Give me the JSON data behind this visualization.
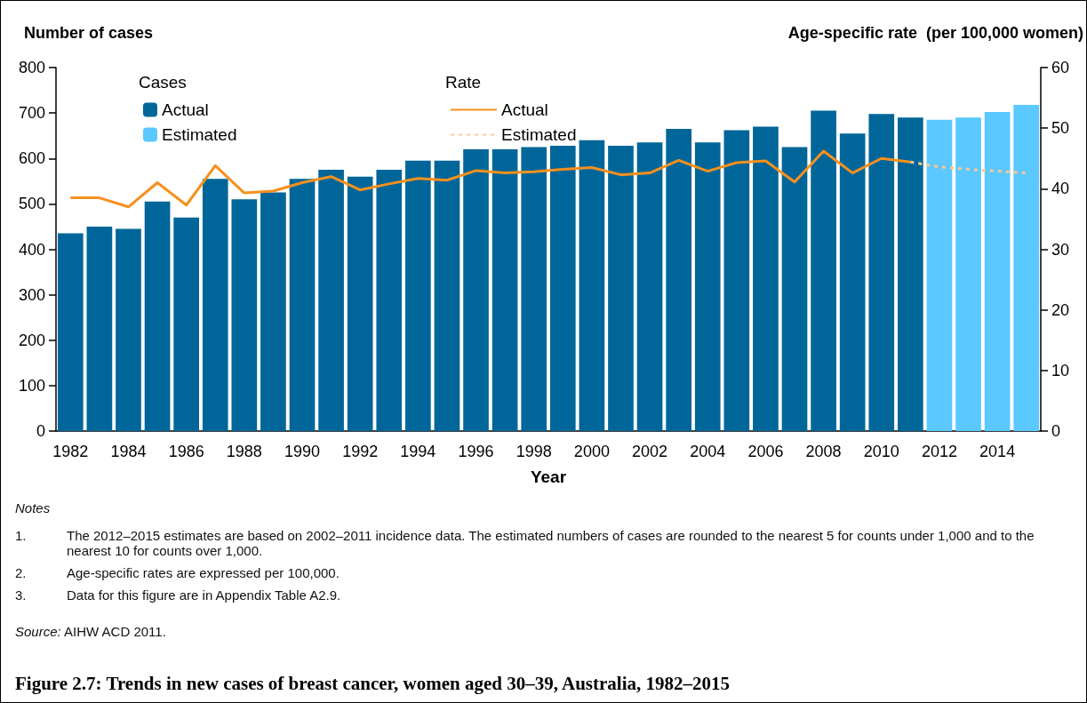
{
  "chart_data": {
    "type": "bar",
    "title": "Figure 2.7: Trends in new cases of breast cancer, women aged 30–39, Australia, 1982–2015",
    "xlabel": "Year",
    "ylabel": "Number of cases",
    "y2label": "Age-specific rate  (per 100,000 women)",
    "legend_title": [
      "Cases",
      "Rate"
    ],
    "categories": [
      "1982",
      null,
      "1984",
      null,
      "1986",
      null,
      "1988",
      null,
      "1990",
      null,
      "1992",
      null,
      "1994",
      null,
      "1996",
      null,
      "1998",
      null,
      "2000",
      null,
      "2002",
      null,
      "2004",
      null,
      "2006",
      null,
      "2008",
      null,
      "2010",
      null,
      "2012",
      null,
      "2014",
      null
    ],
    "stacked": true,
    "series": [
      {
        "name": "Actual",
        "type": "bar",
        "color": "#006699",
        "values": [
          435,
          450,
          445,
          505,
          470,
          555,
          510,
          525,
          555,
          575,
          560,
          575,
          595,
          595,
          620,
          620,
          625,
          628,
          640,
          628,
          635,
          665,
          635,
          662,
          670,
          625,
          705,
          655,
          698,
          690,
          null,
          null,
          null,
          null
        ]
      },
      {
        "name": "Estimated",
        "type": "bar",
        "color": "#5bc8ff",
        "values": [
          null,
          null,
          null,
          null,
          null,
          null,
          null,
          null,
          null,
          null,
          null,
          null,
          null,
          null,
          null,
          null,
          null,
          null,
          null,
          null,
          null,
          null,
          null,
          null,
          null,
          null,
          null,
          null,
          null,
          null,
          685,
          690,
          702,
          718
        ]
      },
      {
        "name": "Actual",
        "type": "line",
        "axis": "y2",
        "color": "#f7901e",
        "line_style": "solid",
        "values": [
          38.5,
          38.5,
          37,
          41,
          37.3,
          43.8,
          39.3,
          39.6,
          41,
          42,
          39.8,
          40.8,
          41.7,
          41.4,
          43,
          42.6,
          42.8,
          43.2,
          43.5,
          42.3,
          42.6,
          44.7,
          42.9,
          44.3,
          44.6,
          41.1,
          46.2,
          42.6,
          45,
          44.4,
          null,
          null,
          null,
          null
        ]
      },
      {
        "name": "Estimated",
        "type": "line",
        "axis": "y2",
        "color": "#fcc894",
        "line_style": "dotted",
        "values": [
          null,
          null,
          null,
          null,
          null,
          null,
          null,
          null,
          null,
          null,
          null,
          null,
          null,
          null,
          null,
          null,
          null,
          null,
          null,
          null,
          null,
          null,
          null,
          null,
          null,
          null,
          null,
          null,
          null,
          44.4,
          43.6,
          43.2,
          42.9,
          42.6
        ]
      }
    ],
    "ylim": [
      0,
      800
    ],
    "yticks": [
      0,
      100,
      200,
      300,
      400,
      500,
      600,
      700,
      800
    ],
    "y2lim": [
      0,
      60
    ],
    "y2ticks": [
      0,
      10,
      20,
      30,
      40,
      50,
      60
    ],
    "grid": false,
    "legend": "top left",
    "marker": "none",
    "annotations": [
      "Notes",
      "1. The 2012–2015 estimates are based on 2002–2011 incidence data. The estimated numbers of cases are rounded to the nearest 5 for counts under 1,000 and to the nearest 10 for counts over 1,000.",
      "2. Age-specific rates are expressed per 100,000.",
      "3. Data for this figure are in Appendix Table A2.9.",
      "Source: AIHW ACD 2011."
    ]
  }
}
